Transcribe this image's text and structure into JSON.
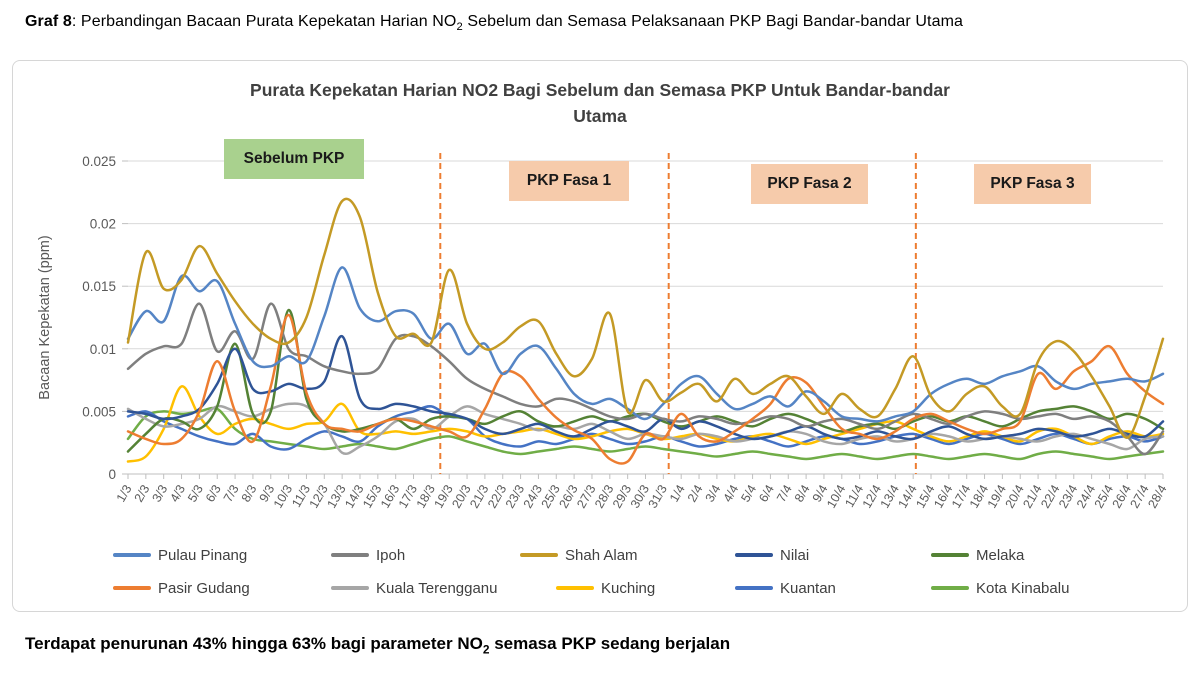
{
  "page": {
    "header": {
      "bold_prefix": "Graf 8",
      "mid": ": Perbandingan Bacaan Purata Kepekatan Harian NO",
      "sub": "2",
      "tail": " Sebelum dan Semasa Pelaksanaan PKP Bagi Bandar-bandar Utama"
    },
    "footer": {
      "pre": "Terdapat penurunan 43% hingga 63% bagi parameter NO",
      "sub": "2",
      "tail": " semasa PKP sedang berjalan"
    }
  },
  "chart_data": {
    "type": "line",
    "title_line1": "Purata Kepekatan Harian NO2 Bagi Sebelum dan Semasa PKP Untuk Bandar-bandar",
    "title_line2": "Utama",
    "ylabel": "Bacaan Kepekatan (ppm)",
    "ylim": [
      0,
      0.025
    ],
    "yticks": [
      "0",
      "0.005",
      "0.01",
      "0.015",
      "0.02",
      "0.025"
    ],
    "ytick_values": [
      0,
      0.005,
      0.01,
      0.015,
      0.02,
      0.025
    ],
    "grid": "horizontal",
    "legend_position": "bottom",
    "x": [
      "1/3",
      "2/3",
      "3/3",
      "4/3",
      "5/3",
      "6/3",
      "7/3",
      "8/3",
      "9/3",
      "10/3",
      "11/3",
      "12/3",
      "13/3",
      "14/3",
      "15/3",
      "16/3",
      "17/3",
      "18/3",
      "19/3",
      "20/3",
      "21/3",
      "22/3",
      "23/3",
      "24/3",
      "25/3",
      "26/3",
      "27/3",
      "28/3",
      "29/3",
      "30/3",
      "31/3",
      "1/4",
      "2/4",
      "3/4",
      "4/4",
      "5/4",
      "6/4",
      "7/4",
      "8/4",
      "9/4",
      "10/4",
      "11/4",
      "12/4",
      "13/4",
      "14/4",
      "15/4",
      "16/4",
      "17/4",
      "18/4",
      "19/4",
      "20/4",
      "21/4",
      "22/4",
      "23/4",
      "24/4",
      "25/4",
      "26/4",
      "27/4",
      "28/4"
    ],
    "series": [
      {
        "name": "Pulau Pinang",
        "color": "#5585C5",
        "values": [
          0.0108,
          0.013,
          0.0122,
          0.0158,
          0.0146,
          0.0154,
          0.012,
          0.009,
          0.0086,
          0.0094,
          0.009,
          0.0126,
          0.0165,
          0.0132,
          0.0122,
          0.013,
          0.0128,
          0.0108,
          0.012,
          0.0096,
          0.0104,
          0.008,
          0.0096,
          0.0102,
          0.0084,
          0.0064,
          0.0056,
          0.006,
          0.0052,
          0.0044,
          0.0056,
          0.0072,
          0.0078,
          0.0064,
          0.0052,
          0.0056,
          0.0062,
          0.0054,
          0.0066,
          0.0058,
          0.0046,
          0.0044,
          0.0042,
          0.0046,
          0.005,
          0.0064,
          0.0072,
          0.0076,
          0.0072,
          0.0078,
          0.0082,
          0.0086,
          0.0074,
          0.0068,
          0.0072,
          0.0074,
          0.0076,
          0.0074,
          0.008
        ]
      },
      {
        "name": "Ipoh",
        "color": "#7F7F7F",
        "values": [
          0.0084,
          0.0096,
          0.0102,
          0.0104,
          0.0136,
          0.0098,
          0.0114,
          0.0092,
          0.0136,
          0.01,
          0.0094,
          0.0086,
          0.0082,
          0.008,
          0.0084,
          0.0108,
          0.011,
          0.0102,
          0.009,
          0.0076,
          0.0068,
          0.0062,
          0.0056,
          0.0054,
          0.006,
          0.0058,
          0.0052,
          0.0046,
          0.0044,
          0.0048,
          0.0044,
          0.0042,
          0.0046,
          0.0044,
          0.004,
          0.0042,
          0.0046,
          0.0044,
          0.0038,
          0.0042,
          0.0044,
          0.004,
          0.0036,
          0.0042,
          0.0048,
          0.0044,
          0.004,
          0.0046,
          0.005,
          0.0048,
          0.0044,
          0.0046,
          0.0048,
          0.0044,
          0.0046,
          0.0042,
          0.003,
          0.0016,
          0.0034
        ]
      },
      {
        "name": "Shah Alam",
        "color": "#C49A25",
        "values": [
          0.0105,
          0.0177,
          0.0148,
          0.0155,
          0.0182,
          0.016,
          0.0138,
          0.012,
          0.0108,
          0.0105,
          0.0125,
          0.0175,
          0.0218,
          0.0205,
          0.0145,
          0.011,
          0.0112,
          0.0105,
          0.0163,
          0.012,
          0.01,
          0.0105,
          0.0118,
          0.0122,
          0.0096,
          0.0078,
          0.0092,
          0.0128,
          0.005,
          0.0075,
          0.0058,
          0.0065,
          0.0072,
          0.0058,
          0.0076,
          0.0064,
          0.0072,
          0.0078,
          0.0062,
          0.0048,
          0.0064,
          0.0052,
          0.0046,
          0.0068,
          0.0094,
          0.0062,
          0.005,
          0.0064,
          0.007,
          0.0054,
          0.0048,
          0.009,
          0.0106,
          0.0098,
          0.0078,
          0.0054,
          0.0029,
          0.0062,
          0.0108
        ]
      },
      {
        "name": "Nilai",
        "color": "#2F5496",
        "values": [
          0.005,
          0.0048,
          0.0044,
          0.0046,
          0.0052,
          0.0072,
          0.01,
          0.0068,
          0.0066,
          0.0072,
          0.0068,
          0.0074,
          0.011,
          0.006,
          0.0052,
          0.0056,
          0.0054,
          0.005,
          0.0048,
          0.0044,
          0.0036,
          0.0032,
          0.0036,
          0.004,
          0.0034,
          0.003,
          0.0036,
          0.0042,
          0.0038,
          0.0034,
          0.0044,
          0.0036,
          0.0042,
          0.0038,
          0.0032,
          0.0028,
          0.003,
          0.0034,
          0.0038,
          0.0032,
          0.0028,
          0.003,
          0.0034,
          0.003,
          0.0028,
          0.0034,
          0.0038,
          0.0032,
          0.0028,
          0.003,
          0.0032,
          0.0036,
          0.0034,
          0.003,
          0.0032,
          0.0036,
          0.0032,
          0.003,
          0.0042
        ]
      },
      {
        "name": "Melaka",
        "color": "#548235",
        "values": [
          0.0018,
          0.0032,
          0.0044,
          0.0042,
          0.0036,
          0.0054,
          0.0104,
          0.0048,
          0.005,
          0.0131,
          0.006,
          0.004,
          0.0034,
          0.0036,
          0.004,
          0.0044,
          0.0036,
          0.0044,
          0.0046,
          0.0044,
          0.004,
          0.0046,
          0.005,
          0.0042,
          0.0038,
          0.0042,
          0.0046,
          0.0042,
          0.0046,
          0.0048,
          0.0042,
          0.0038,
          0.0042,
          0.0046,
          0.0042,
          0.0038,
          0.0044,
          0.0048,
          0.0044,
          0.0038,
          0.0034,
          0.0038,
          0.004,
          0.0036,
          0.0042,
          0.0046,
          0.0042,
          0.0046,
          0.0042,
          0.0038,
          0.0044,
          0.005,
          0.0052,
          0.0054,
          0.005,
          0.0044,
          0.0048,
          0.0044,
          0.0036
        ]
      },
      {
        "name": "Pasir Gudang",
        "color": "#ED7D31",
        "values": [
          0.0034,
          0.0028,
          0.0024,
          0.0028,
          0.005,
          0.009,
          0.005,
          0.0026,
          0.007,
          0.0127,
          0.0065,
          0.004,
          0.0036,
          0.0034,
          0.004,
          0.0044,
          0.0042,
          0.0038,
          0.0034,
          0.003,
          0.0052,
          0.008,
          0.0078,
          0.006,
          0.0045,
          0.0035,
          0.0028,
          0.0012,
          0.001,
          0.0032,
          0.0028,
          0.0048,
          0.003,
          0.0026,
          0.0034,
          0.0044,
          0.0056,
          0.0076,
          0.0073,
          0.0054,
          0.0036,
          0.0032,
          0.0028,
          0.0034,
          0.0044,
          0.0048,
          0.0042,
          0.0036,
          0.0032,
          0.0036,
          0.0042,
          0.008,
          0.0068,
          0.0082,
          0.009,
          0.0102,
          0.008,
          0.0066,
          0.0056
        ]
      },
      {
        "name": "Kuala Terengganu",
        "color": "#A6A6A6",
        "values": [
          0.0052,
          0.0044,
          0.0038,
          0.004,
          0.0044,
          0.0054,
          0.005,
          0.0046,
          0.0052,
          0.0056,
          0.0054,
          0.004,
          0.0017,
          0.0022,
          0.003,
          0.0042,
          0.0044,
          0.0036,
          0.0046,
          0.0054,
          0.0048,
          0.0044,
          0.004,
          0.0035,
          0.0038,
          0.0036,
          0.004,
          0.0034,
          0.0028,
          0.0032,
          0.003,
          0.0028,
          0.0032,
          0.003,
          0.0026,
          0.0028,
          0.003,
          0.0034,
          0.0032,
          0.0026,
          0.0024,
          0.0028,
          0.003,
          0.0026,
          0.0028,
          0.0032,
          0.003,
          0.0026,
          0.0028,
          0.003,
          0.0028,
          0.0026,
          0.003,
          0.0032,
          0.0028,
          0.0024,
          0.002,
          0.0028,
          0.003
        ]
      },
      {
        "name": "Kuching",
        "color": "#FFC000",
        "values": [
          0.001,
          0.0014,
          0.0036,
          0.007,
          0.0046,
          0.0032,
          0.004,
          0.0044,
          0.004,
          0.0036,
          0.004,
          0.0042,
          0.0056,
          0.0034,
          0.0032,
          0.0034,
          0.0032,
          0.0034,
          0.0036,
          0.0034,
          0.003,
          0.0032,
          0.0034,
          0.0036,
          0.0032,
          0.0028,
          0.003,
          0.0034,
          0.0036,
          0.0032,
          0.0028,
          0.003,
          0.0032,
          0.0028,
          0.0026,
          0.003,
          0.0032,
          0.0028,
          0.0024,
          0.0028,
          0.0032,
          0.0036,
          0.004,
          0.0042,
          0.0036,
          0.003,
          0.0026,
          0.003,
          0.0034,
          0.003,
          0.0026,
          0.0034,
          0.0036,
          0.003,
          0.0024,
          0.003,
          0.0034,
          0.003,
          0.0032
        ]
      },
      {
        "name": "Kuantan",
        "color": "#4472C4",
        "values": [
          0.0046,
          0.005,
          0.0042,
          0.0036,
          0.003,
          0.0026,
          0.0024,
          0.0032,
          0.0022,
          0.002,
          0.0028,
          0.0034,
          0.003,
          0.0026,
          0.0038,
          0.0046,
          0.005,
          0.0054,
          0.0046,
          0.0044,
          0.003,
          0.0024,
          0.0022,
          0.0026,
          0.0024,
          0.0028,
          0.0032,
          0.0028,
          0.0024,
          0.0026,
          0.003,
          0.0026,
          0.0022,
          0.0024,
          0.0028,
          0.003,
          0.0026,
          0.0022,
          0.0026,
          0.003,
          0.0028,
          0.0024,
          0.0026,
          0.003,
          0.0032,
          0.0028,
          0.0024,
          0.0028,
          0.0032,
          0.0028,
          0.0024,
          0.0028,
          0.0032,
          0.0028,
          0.0024,
          0.0028,
          0.003,
          0.0026,
          0.003
        ]
      },
      {
        "name": "Kota Kinabalu",
        "color": "#70AD47",
        "values": [
          0.0028,
          0.0046,
          0.005,
          0.0048,
          0.005,
          0.0052,
          0.0036,
          0.0028,
          0.0026,
          0.0024,
          0.0022,
          0.002,
          0.0022,
          0.0024,
          0.0022,
          0.002,
          0.0024,
          0.0028,
          0.003,
          0.0026,
          0.0022,
          0.0018,
          0.0016,
          0.0018,
          0.002,
          0.0022,
          0.002,
          0.0018,
          0.002,
          0.0022,
          0.002,
          0.0018,
          0.0016,
          0.0014,
          0.0016,
          0.0018,
          0.0016,
          0.0014,
          0.0012,
          0.0014,
          0.0016,
          0.0014,
          0.0012,
          0.0014,
          0.0016,
          0.0014,
          0.0012,
          0.0014,
          0.0016,
          0.0014,
          0.0012,
          0.0016,
          0.0018,
          0.0016,
          0.0014,
          0.0012,
          0.0014,
          0.0016,
          0.0018
        ]
      }
    ],
    "annotations": {
      "phases": [
        {
          "label": "Sebelum PKP",
          "fill": "#A9D18E"
        },
        {
          "label": "PKP Fasa 1",
          "fill": "#F6CBAB"
        },
        {
          "label": "PKP Fasa 2",
          "fill": "#F6CBAB"
        },
        {
          "label": "PKP Fasa 3",
          "fill": "#F6CBAB"
        }
      ],
      "boundaries_index": [
        17.5,
        30.3,
        44.15
      ],
      "boundary_color": "#ED7D31"
    }
  }
}
